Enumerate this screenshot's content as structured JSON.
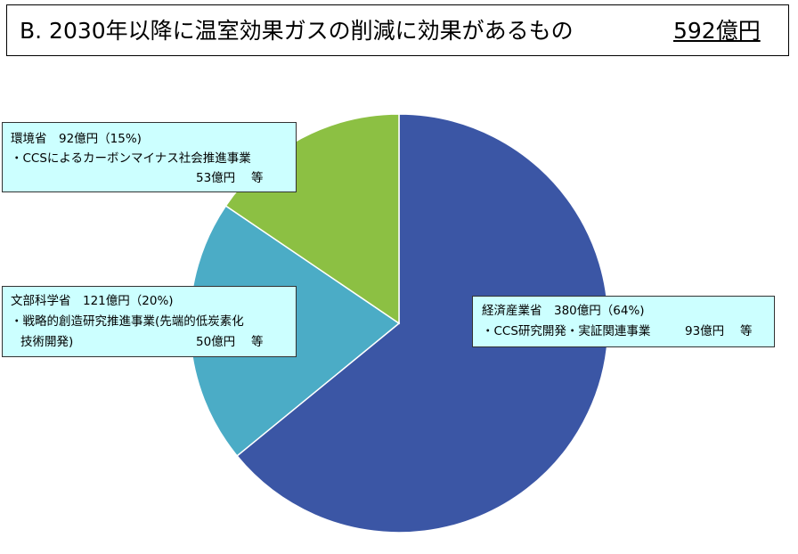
{
  "title": {
    "text": "B. 2030年以降に温室効果ガスの削減に効果があるもの",
    "total": "592億円"
  },
  "callouts": {
    "env": {
      "header": "環境省　92億円（15%)",
      "item": "・CCSによるカーボンマイナス社会推進事業",
      "amount": "53億円　 等"
    },
    "mext": {
      "header": "文部科学省　121億円（20%)",
      "item1": "・戦略的創造研究推進事業(先端的低炭素化",
      "item2": "技術開発)",
      "amount": "50億円　 等"
    },
    "meti": {
      "header": "経済産業省　380億円（64%)",
      "item": "・CCS研究開発・実証関連事業",
      "amount": "93億円　 等"
    }
  },
  "chart_data": {
    "type": "pie",
    "title": "B. 2030年以降に温室効果ガスの削減に効果があるもの",
    "total": "592億円",
    "slices": [
      {
        "label": "経済産業省",
        "value": 380,
        "percent": 64,
        "color": "#3b56a5"
      },
      {
        "label": "文部科学省",
        "value": 121,
        "percent": 20,
        "color": "#4bacc6"
      },
      {
        "label": "環境省",
        "value": 92,
        "percent": 15,
        "color": "#8cc043"
      }
    ],
    "start": "12 o'clock",
    "direction": "clockwise"
  }
}
